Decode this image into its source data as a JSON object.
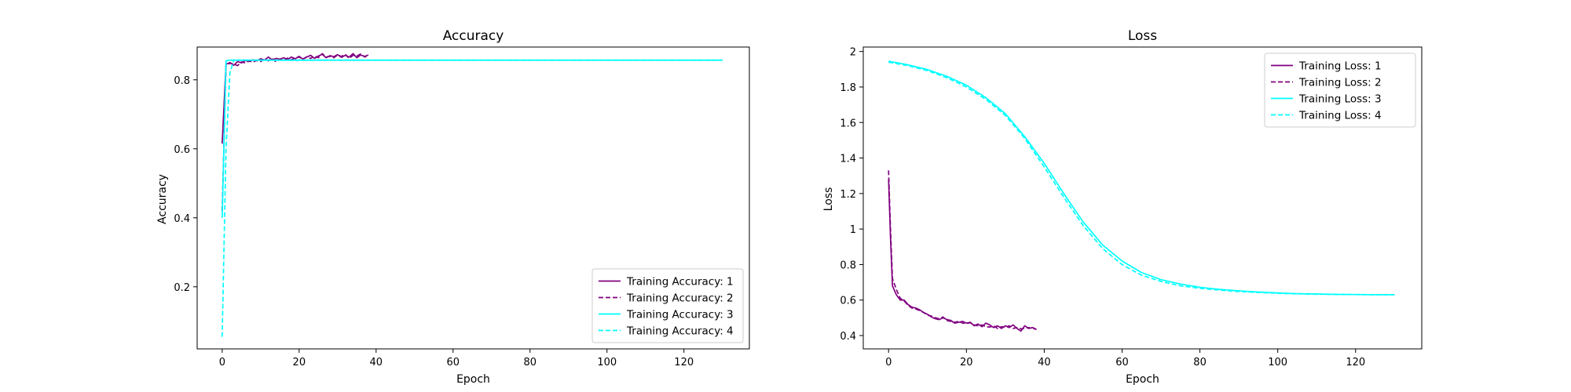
{
  "chart_data": [
    {
      "type": "line",
      "title": "Accuracy",
      "xlabel": "Epoch",
      "ylabel": "Accuracy",
      "xlim": [
        -6.5,
        137
      ],
      "ylim": [
        0.02,
        0.895
      ],
      "xticks": [
        0,
        20,
        40,
        60,
        80,
        100,
        120
      ],
      "yticks": [
        0.2,
        0.4,
        0.6,
        0.8
      ],
      "legend": "lower-right",
      "grid": false,
      "series": [
        {
          "name": "Training Accuracy: 1",
          "color": "#800080",
          "dash": "solid",
          "x": [
            0,
            1,
            2,
            3,
            4,
            5,
            6,
            7,
            8,
            9,
            10,
            11,
            12,
            13,
            14,
            15,
            16,
            17,
            18,
            19,
            20,
            21,
            22,
            23,
            24,
            25,
            26,
            27,
            28,
            29,
            30,
            31,
            32,
            33,
            34,
            35,
            36,
            37,
            38
          ],
          "y": [
            0.615,
            0.845,
            0.85,
            0.842,
            0.853,
            0.849,
            0.856,
            0.853,
            0.858,
            0.855,
            0.861,
            0.857,
            0.866,
            0.858,
            0.862,
            0.86,
            0.864,
            0.859,
            0.866,
            0.861,
            0.868,
            0.86,
            0.866,
            0.871,
            0.862,
            0.869,
            0.874,
            0.864,
            0.87,
            0.867,
            0.873,
            0.865,
            0.871,
            0.866,
            0.876,
            0.864,
            0.872,
            0.868,
            0.872
          ]
        },
        {
          "name": "Training Accuracy: 2",
          "color": "#800080",
          "dash": "dashed",
          "x": [
            0,
            1,
            2,
            3,
            4,
            5,
            6,
            7,
            8,
            9,
            10,
            11,
            12,
            13,
            14,
            15,
            16,
            17,
            18,
            19,
            20,
            21,
            22,
            23,
            24,
            25,
            26,
            27,
            28,
            29,
            30,
            31,
            32,
            33,
            34,
            35,
            36,
            37,
            38
          ],
          "y": [
            0.42,
            0.84,
            0.848,
            0.846,
            0.841,
            0.852,
            0.849,
            0.855,
            0.851,
            0.857,
            0.853,
            0.86,
            0.855,
            0.862,
            0.852,
            0.86,
            0.856,
            0.863,
            0.858,
            0.864,
            0.866,
            0.86,
            0.867,
            0.862,
            0.869,
            0.864,
            0.876,
            0.866,
            0.868,
            0.864,
            0.872,
            0.868,
            0.874,
            0.862,
            0.871,
            0.869,
            0.875,
            0.866,
            0.87
          ]
        },
        {
          "name": "Training Accuracy: 3",
          "color": "#00ffff",
          "dash": "solid",
          "x": [
            0,
            1,
            2,
            5,
            10,
            20,
            40,
            60,
            80,
            100,
            120,
            130
          ],
          "y": [
            0.4,
            0.855,
            0.857,
            0.857,
            0.857,
            0.857,
            0.857,
            0.857,
            0.857,
            0.857,
            0.857,
            0.857
          ]
        },
        {
          "name": "Training Accuracy: 4",
          "color": "#00ffff",
          "dash": "dashed",
          "x": [
            0,
            1,
            2,
            3,
            4,
            5,
            10,
            20,
            40,
            60,
            80,
            100,
            120,
            130
          ],
          "y": [
            0.055,
            0.6,
            0.82,
            0.857,
            0.857,
            0.857,
            0.857,
            0.857,
            0.857,
            0.857,
            0.857,
            0.857,
            0.857,
            0.857
          ]
        }
      ]
    },
    {
      "type": "line",
      "title": "Loss",
      "xlabel": "Epoch",
      "ylabel": "Loss",
      "xlim": [
        -6.5,
        137
      ],
      "ylim": [
        0.325,
        2.025
      ],
      "xticks": [
        0,
        20,
        40,
        60,
        80,
        100,
        120
      ],
      "yticks": [
        0.4,
        0.6,
        0.8,
        1.0,
        1.2,
        1.4,
        1.6,
        1.8,
        2.0
      ],
      "legend": "top-right",
      "grid": false,
      "series": [
        {
          "name": "Training Loss: 1",
          "color": "#800080",
          "dash": "solid",
          "x": [
            0,
            0.5,
            1,
            2,
            3,
            4,
            5,
            6,
            7,
            8,
            9,
            10,
            11,
            12,
            13,
            14,
            15,
            16,
            17,
            18,
            19,
            20,
            21,
            22,
            23,
            24,
            25,
            26,
            27,
            28,
            29,
            30,
            31,
            32,
            33,
            34,
            35,
            36,
            37,
            38
          ],
          "y": [
            1.28,
            0.95,
            0.68,
            0.63,
            0.6,
            0.6,
            0.575,
            0.56,
            0.555,
            0.545,
            0.53,
            0.52,
            0.505,
            0.495,
            0.49,
            0.5,
            0.49,
            0.485,
            0.47,
            0.475,
            0.48,
            0.47,
            0.475,
            0.455,
            0.465,
            0.45,
            0.47,
            0.46,
            0.445,
            0.455,
            0.44,
            0.455,
            0.445,
            0.46,
            0.44,
            0.425,
            0.455,
            0.44,
            0.445,
            0.435
          ]
        },
        {
          "name": "Training Loss: 2",
          "color": "#800080",
          "dash": "dashed",
          "x": [
            0,
            0.5,
            1,
            2,
            3,
            4,
            5,
            6,
            7,
            8,
            9,
            10,
            11,
            12,
            13,
            14,
            15,
            16,
            17,
            18,
            19,
            20,
            21,
            22,
            23,
            24,
            25,
            26,
            27,
            28,
            29,
            30,
            31,
            32,
            33,
            34,
            35,
            36,
            37,
            38
          ],
          "y": [
            1.33,
            1.0,
            0.72,
            0.66,
            0.61,
            0.595,
            0.57,
            0.555,
            0.55,
            0.54,
            0.53,
            0.515,
            0.51,
            0.5,
            0.495,
            0.505,
            0.485,
            0.48,
            0.475,
            0.48,
            0.47,
            0.468,
            0.472,
            0.46,
            0.455,
            0.46,
            0.45,
            0.448,
            0.455,
            0.44,
            0.45,
            0.445,
            0.455,
            0.44,
            0.445,
            0.438,
            0.44,
            0.445,
            0.44,
            0.435
          ]
        },
        {
          "name": "Training Loss: 3",
          "color": "#00ffff",
          "dash": "solid",
          "x": [
            0,
            5,
            10,
            15,
            20,
            25,
            30,
            35,
            40,
            45,
            50,
            55,
            60,
            65,
            70,
            75,
            80,
            85,
            90,
            95,
            100,
            105,
            110,
            115,
            120,
            125,
            130
          ],
          "y": [
            1.945,
            1.925,
            1.898,
            1.86,
            1.81,
            1.74,
            1.65,
            1.52,
            1.37,
            1.2,
            1.04,
            0.91,
            0.82,
            0.755,
            0.715,
            0.69,
            0.672,
            0.66,
            0.652,
            0.645,
            0.64,
            0.636,
            0.634,
            0.632,
            0.631,
            0.63,
            0.63
          ]
        },
        {
          "name": "Training Loss: 4",
          "color": "#00ffff",
          "dash": "dashed",
          "x": [
            0,
            5,
            10,
            15,
            20,
            25,
            30,
            35,
            40,
            45,
            50,
            55,
            60,
            65,
            70,
            75,
            80,
            85,
            90,
            95,
            100,
            105,
            110,
            115,
            120,
            125,
            130
          ],
          "y": [
            1.94,
            1.92,
            1.892,
            1.852,
            1.8,
            1.73,
            1.64,
            1.51,
            1.35,
            1.18,
            1.02,
            0.89,
            0.8,
            0.74,
            0.705,
            0.68,
            0.666,
            0.656,
            0.648,
            0.643,
            0.638,
            0.635,
            0.633,
            0.632,
            0.631,
            0.63,
            0.63
          ]
        }
      ]
    }
  ]
}
